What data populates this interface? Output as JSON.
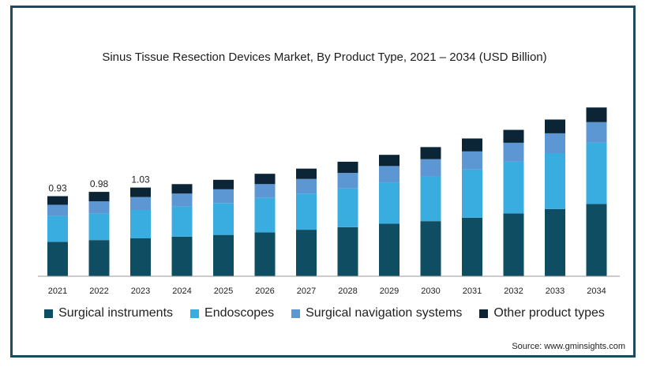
{
  "chart_data": {
    "type": "bar",
    "stacked": true,
    "title": "Sinus Tissue Resection Devices Market, By Product Type, 2021 – 2034 (USD Billion)",
    "categories": [
      "2021",
      "2022",
      "2023",
      "2024",
      "2025",
      "2026",
      "2027",
      "2028",
      "2029",
      "2030",
      "2031",
      "2032",
      "2033",
      "2034"
    ],
    "series": [
      {
        "name": "Surgical instruments",
        "color": "#0e4d62",
        "values": [
          0.4,
          0.42,
          0.44,
          0.46,
          0.48,
          0.51,
          0.54,
          0.57,
          0.61,
          0.64,
          0.68,
          0.73,
          0.78,
          0.84
        ]
      },
      {
        "name": "Endoscopes",
        "color": "#3aade0",
        "values": [
          0.3,
          0.31,
          0.33,
          0.35,
          0.37,
          0.4,
          0.42,
          0.45,
          0.48,
          0.52,
          0.56,
          0.6,
          0.65,
          0.71
        ]
      },
      {
        "name": "Surgical navigation systems",
        "color": "#5c97d3",
        "values": [
          0.13,
          0.14,
          0.15,
          0.15,
          0.16,
          0.16,
          0.17,
          0.18,
          0.19,
          0.2,
          0.21,
          0.22,
          0.23,
          0.24
        ]
      },
      {
        "name": "Other product types",
        "color": "#0b2436",
        "values": [
          0.1,
          0.11,
          0.11,
          0.11,
          0.11,
          0.12,
          0.12,
          0.13,
          0.13,
          0.14,
          0.15,
          0.15,
          0.16,
          0.17
        ]
      }
    ],
    "data_labels": {
      "2021": "0.93",
      "2022": "0.98",
      "2023": "1.03"
    },
    "ylim": [
      0,
      2.2
    ],
    "grid": false,
    "legend_position": "bottom"
  },
  "source": "Source: www.gminsights.com"
}
